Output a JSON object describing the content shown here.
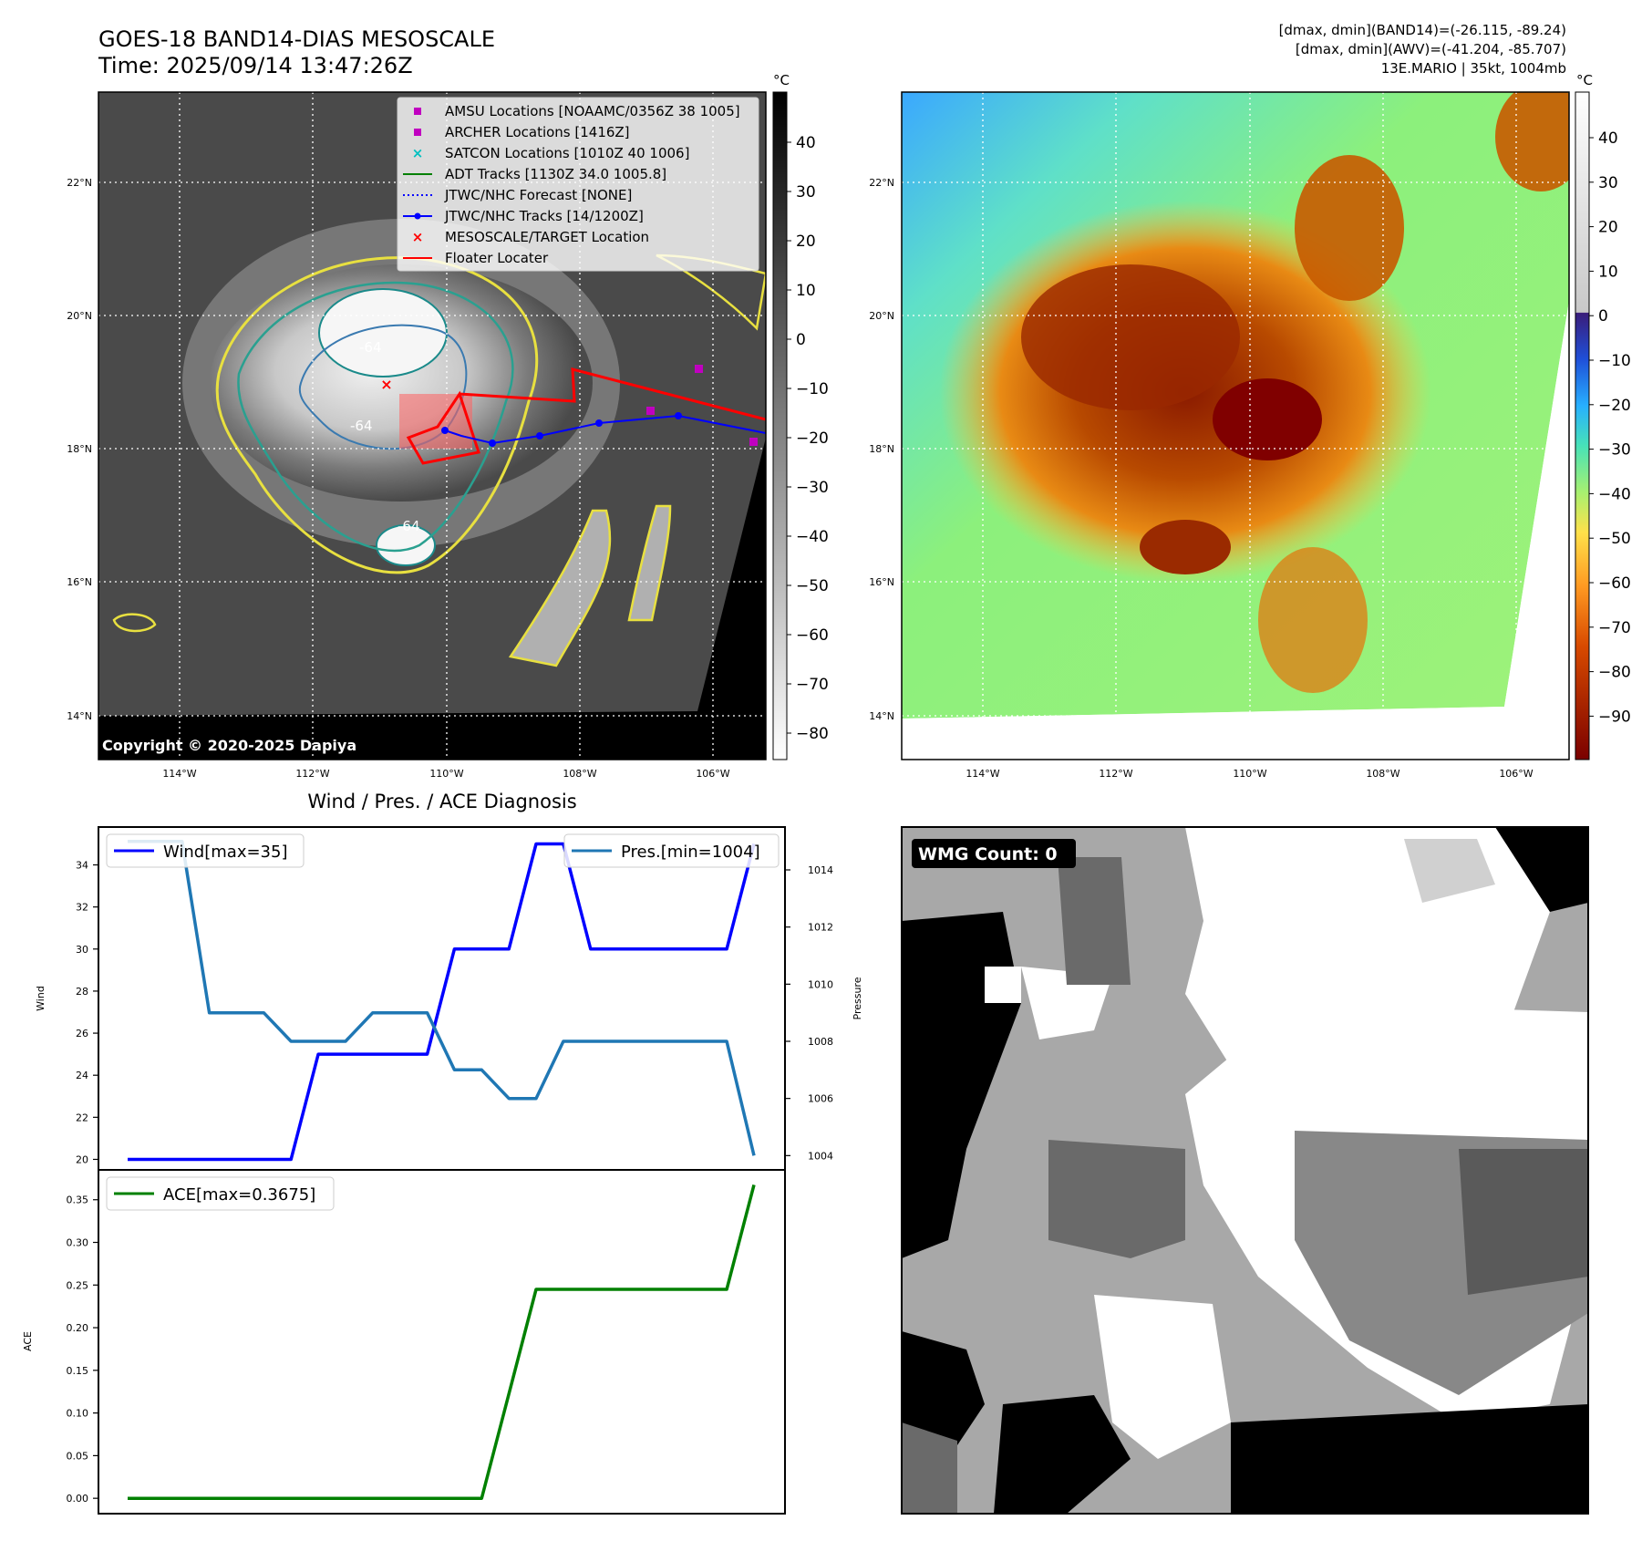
{
  "header": {
    "title_line1": "GOES-18 BAND14-DIAS MESOSCALE",
    "title_line2": "Time: 2025/09/14 13:47:26Z",
    "info_line1": "[dmax, dmin](BAND14)=(-26.115, -89.24)",
    "info_line2": "[dmax, dmin](AWV)=(-41.204, -85.707)",
    "info_line3": "13E.MARIO | 35kt, 1004mb"
  },
  "map_axes": {
    "lat_labels": [
      "22°N",
      "20°N",
      "18°N",
      "16°N",
      "14°N"
    ],
    "lon_labels": [
      "114°W",
      "112°W",
      "110°W",
      "108°W",
      "106°W"
    ]
  },
  "ir_panel": {
    "copyright": "Copyright © 2020-2025 Dapiya",
    "contour_labels": [
      "-64",
      "-64",
      "-64"
    ],
    "colorbar_unit": "°C",
    "colorbar_ticks": [
      "40",
      "30",
      "20",
      "10",
      "0",
      "−10",
      "−20",
      "−30",
      "−40",
      "−50",
      "−60",
      "−70",
      "−80"
    ],
    "legend": [
      {
        "label": "AMSU Locations [NOAAMC/0356Z 38 1005]",
        "symbol": "square",
        "color": "#c000c0"
      },
      {
        "label": "ARCHER Locations [1416Z]",
        "symbol": "square",
        "color": "#c000c0"
      },
      {
        "label": "SATCON Locations [1010Z 40 1006]",
        "symbol": "x",
        "color": "#00c0c0"
      },
      {
        "label": "ADT Tracks [1130Z 34.0 1005.8]",
        "symbol": "line",
        "color": "#008000"
      },
      {
        "label": "JTWC/NHC Forecast [NONE]",
        "symbol": "dotted",
        "color": "#0000ff"
      },
      {
        "label": "JTWC/NHC Tracks [14/1200Z]",
        "symbol": "line-dot",
        "color": "#0000ff"
      },
      {
        "label": "MESOSCALE/TARGET Location",
        "symbol": "x",
        "color": "#ff0000"
      },
      {
        "label": "Floater Locater",
        "symbol": "line",
        "color": "#ff0000"
      }
    ]
  },
  "awv_panel": {
    "colorbar_unit": "°C",
    "colorbar_ticks": [
      "40",
      "30",
      "20",
      "10",
      "0",
      "−10",
      "−20",
      "−30",
      "−40",
      "−50",
      "−60",
      "−70",
      "−80",
      "−90"
    ]
  },
  "wmg_panel": {
    "badge": "WMG Count: 0"
  },
  "chart_data": [
    {
      "type": "line",
      "title": "Wind / Pres. / ACE Diagnosis",
      "ylabel": "Wind",
      "ylabel_right": "Pressure",
      "ylim": [
        19.5,
        35.8
      ],
      "ylim_right": [
        1003.5,
        1015.5
      ],
      "yticks": [
        "20",
        "22",
        "24",
        "26",
        "28",
        "30",
        "32",
        "34"
      ],
      "yticks_right": [
        "1004",
        "1006",
        "1008",
        "1010",
        "1012",
        "1014"
      ],
      "series": [
        {
          "name": "Wind[max=35]",
          "axis": "left",
          "color": "#0000ff",
          "values": [
            20,
            20,
            20,
            20,
            20,
            20,
            20,
            25,
            25,
            25,
            25,
            25,
            30,
            30,
            30,
            35,
            35,
            30,
            30,
            30,
            30,
            30,
            30,
            35
          ]
        },
        {
          "name": "Pres.[min=1004]",
          "axis": "right",
          "color": "#1f77b4",
          "values": [
            1015,
            1015,
            1015,
            1009,
            1009,
            1009,
            1008,
            1008,
            1008,
            1009,
            1009,
            1009,
            1007,
            1007,
            1006,
            1006,
            1008,
            1008,
            1008,
            1008,
            1008,
            1008,
            1008,
            1004
          ]
        }
      ]
    },
    {
      "type": "line",
      "ylabel": "ACE",
      "ylim": [
        -0.018,
        0.385
      ],
      "yticks": [
        "0.00",
        "0.05",
        "0.10",
        "0.15",
        "0.20",
        "0.25",
        "0.30",
        "0.35"
      ],
      "series": [
        {
          "name": "ACE[max=0.3675]",
          "color": "#008000",
          "values": [
            0,
            0,
            0,
            0,
            0,
            0,
            0,
            0,
            0,
            0,
            0,
            0,
            0,
            0,
            0.1225,
            0.245,
            0.245,
            0.245,
            0.245,
            0.245,
            0.245,
            0.245,
            0.245,
            0.3675
          ]
        }
      ]
    }
  ]
}
